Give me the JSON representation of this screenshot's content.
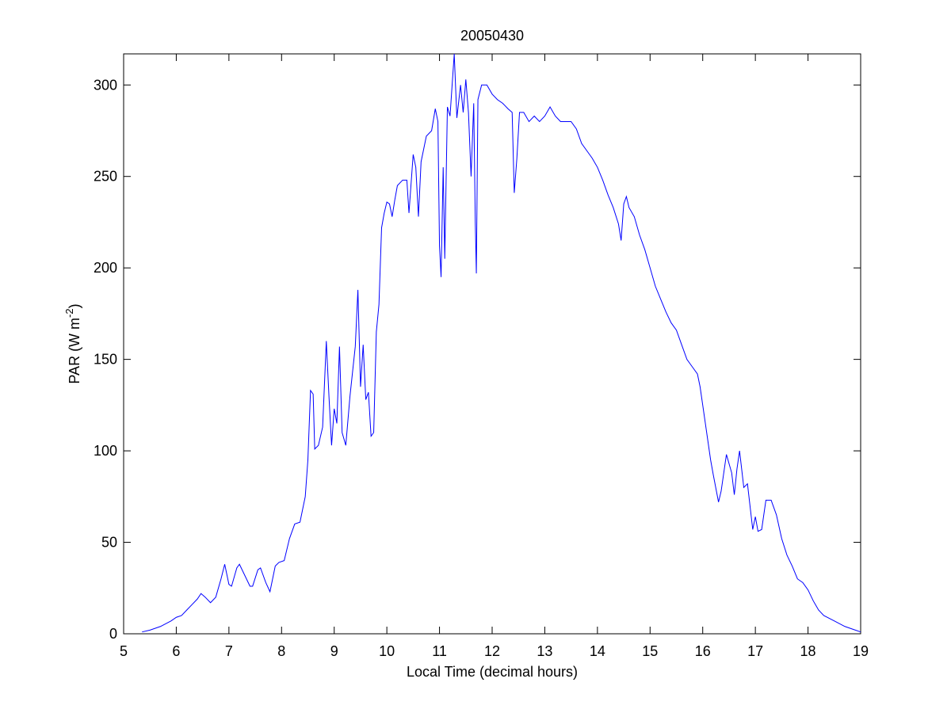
{
  "chart_data": {
    "type": "line",
    "title": "20050430",
    "x_label": "Local Time (decimal hours)",
    "y_label": {
      "text": "PAR (W m",
      "superscript": "-2",
      "suffix": ")"
    },
    "xlim": [
      5,
      19
    ],
    "xticks": [
      5,
      6,
      7,
      8,
      9,
      10,
      11,
      12,
      13,
      14,
      15,
      16,
      17,
      18,
      19
    ],
    "ylim": [
      0,
      317
    ],
    "yticks": [
      0,
      50,
      100,
      150,
      200,
      250,
      300
    ],
    "grid": false,
    "series": [
      {
        "color": "#0000ff",
        "x": [
          5.35,
          5.5,
          5.7,
          5.9,
          6.0,
          6.1,
          6.2,
          6.3,
          6.4,
          6.47,
          6.55,
          6.65,
          6.75,
          6.85,
          6.92,
          7.0,
          7.05,
          7.15,
          7.2,
          7.3,
          7.4,
          7.45,
          7.55,
          7.6,
          7.7,
          7.78,
          7.88,
          7.95,
          8.05,
          8.15,
          8.25,
          8.35,
          8.45,
          8.5,
          8.55,
          8.6,
          8.63,
          8.7,
          8.78,
          8.85,
          8.9,
          8.95,
          9.0,
          9.05,
          9.1,
          9.15,
          9.22,
          9.3,
          9.4,
          9.45,
          9.5,
          9.55,
          9.6,
          9.65,
          9.7,
          9.75,
          9.8,
          9.85,
          9.9,
          9.95,
          10.0,
          10.05,
          10.1,
          10.15,
          10.2,
          10.3,
          10.38,
          10.42,
          10.5,
          10.55,
          10.6,
          10.65,
          10.75,
          10.85,
          10.92,
          10.97,
          11.0,
          11.03,
          11.07,
          11.1,
          11.15,
          11.2,
          11.28,
          11.33,
          11.4,
          11.45,
          11.5,
          11.55,
          11.6,
          11.65,
          11.68,
          11.7,
          11.73,
          11.8,
          11.9,
          12.0,
          12.1,
          12.2,
          12.3,
          12.38,
          12.42,
          12.47,
          12.52,
          12.6,
          12.7,
          12.8,
          12.9,
          13.0,
          13.1,
          13.2,
          13.3,
          13.4,
          13.5,
          13.6,
          13.7,
          13.8,
          13.9,
          14.0,
          14.1,
          14.2,
          14.3,
          14.4,
          14.45,
          14.5,
          14.55,
          14.6,
          14.7,
          14.8,
          14.9,
          15.0,
          15.1,
          15.2,
          15.3,
          15.4,
          15.5,
          15.6,
          15.7,
          15.8,
          15.9,
          15.95,
          16.05,
          16.15,
          16.2,
          16.3,
          16.35,
          16.45,
          16.55,
          16.6,
          16.65,
          16.7,
          16.78,
          16.85,
          16.95,
          17.0,
          17.05,
          17.12,
          17.2,
          17.3,
          17.4,
          17.5,
          17.6,
          17.7,
          17.8,
          17.9,
          18.0,
          18.1,
          18.2,
          18.3,
          18.5,
          18.7,
          18.9,
          19.0
        ],
        "values": [
          1,
          2,
          4,
          7,
          9,
          10,
          13,
          16,
          19,
          22,
          20,
          17,
          20,
          30,
          38,
          27,
          26,
          36,
          38,
          32,
          26,
          26,
          35,
          36,
          28,
          23,
          37,
          39,
          40,
          52,
          60,
          61,
          75,
          95,
          133,
          131,
          101,
          103,
          113,
          160,
          130,
          103,
          123,
          115,
          157,
          110,
          103,
          130,
          157,
          188,
          135,
          158,
          128,
          132,
          108,
          110,
          165,
          180,
          222,
          230,
          236,
          235,
          228,
          237,
          245,
          248,
          248,
          230,
          262,
          255,
          228,
          258,
          272,
          275,
          287,
          280,
          212,
          195,
          255,
          205,
          288,
          283,
          317,
          282,
          300,
          285,
          303,
          285,
          250,
          290,
          225,
          197,
          292,
          300,
          300,
          295,
          292,
          290,
          287,
          285,
          241,
          260,
          285,
          285,
          280,
          283,
          280,
          283,
          288,
          283,
          280,
          280,
          280,
          276,
          268,
          264,
          260,
          255,
          248,
          240,
          233,
          224,
          215,
          235,
          239,
          233,
          228,
          218,
          210,
          200,
          190,
          183,
          176,
          170,
          166,
          158,
          150,
          146,
          142,
          135,
          115,
          95,
          87,
          72,
          78,
          98,
          88,
          76,
          90,
          100,
          80,
          82,
          57,
          64,
          56,
          57,
          73,
          73,
          65,
          52,
          43,
          37,
          30,
          28,
          24,
          18,
          13,
          10,
          7,
          4,
          2,
          1
        ]
      }
    ]
  }
}
